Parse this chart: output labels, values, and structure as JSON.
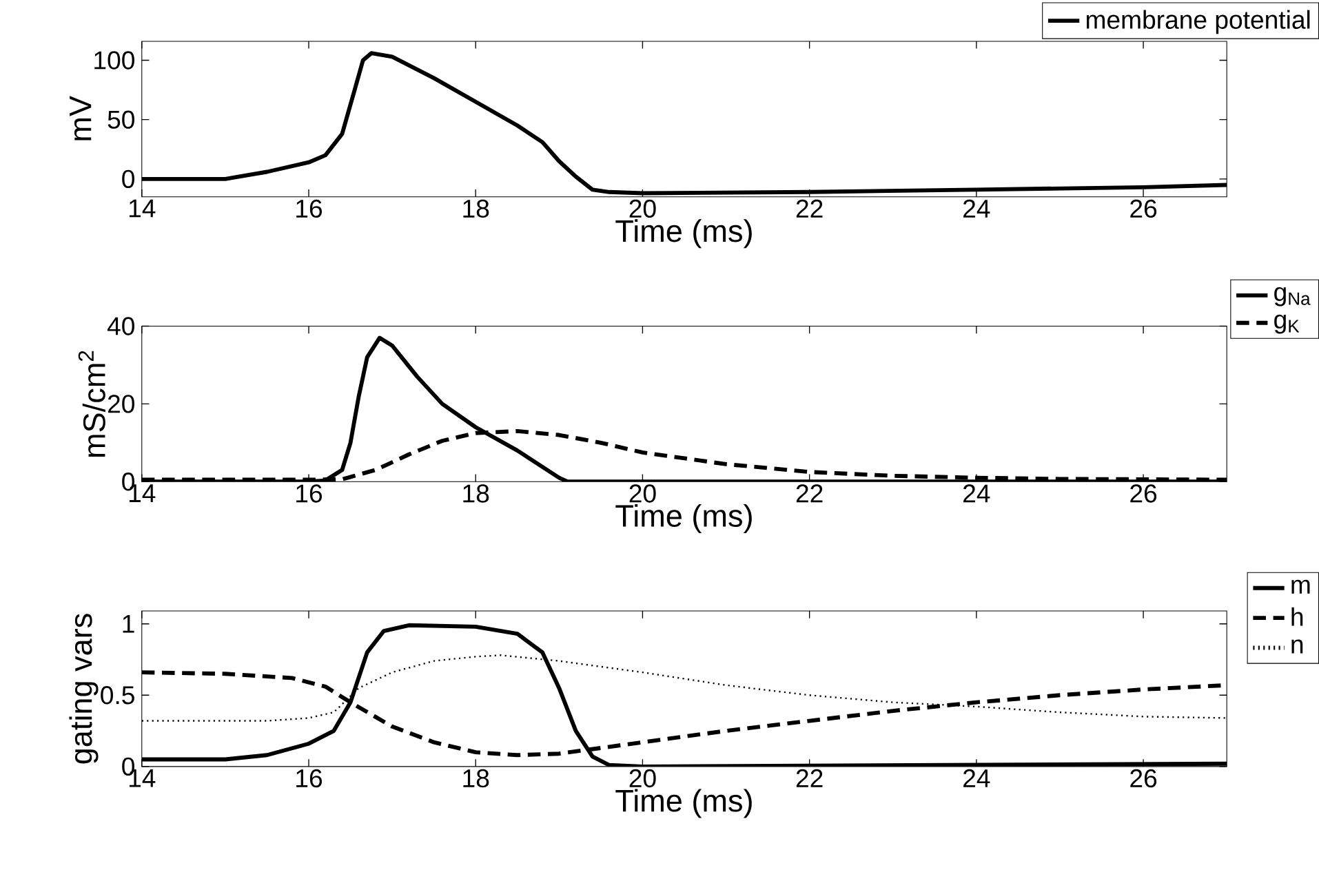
{
  "chart_data": [
    {
      "type": "line",
      "xlabel": "Time (ms)",
      "ylabel": "mV",
      "xlim": [
        14,
        27
      ],
      "ylim": [
        -15,
        116
      ],
      "xticks": [
        14,
        16,
        18,
        20,
        22,
        24,
        26
      ],
      "yticks": [
        0,
        50,
        100
      ],
      "legend": "top right",
      "grid": false,
      "series": [
        {
          "name": "membrane potential",
          "color": "#000000",
          "line_style": "solid",
          "x": [
            14,
            15,
            15.5,
            16,
            16.2,
            16.4,
            16.55,
            16.65,
            16.75,
            17,
            17.5,
            18,
            18.5,
            18.8,
            19,
            19.2,
            19.4,
            19.6,
            20,
            22,
            24,
            26,
            27
          ],
          "values": [
            0,
            0,
            6,
            14,
            20,
            38,
            75,
            100,
            106,
            103,
            85,
            65,
            45,
            31,
            15,
            2,
            -9,
            -11,
            -12,
            -11,
            -9,
            -7,
            -5
          ]
        }
      ]
    },
    {
      "type": "line",
      "xlabel": "Time (ms)",
      "ylabel": "mS/cm$^{2}$",
      "xlim": [
        14,
        27
      ],
      "ylim": [
        0,
        40
      ],
      "xticks": [
        14,
        16,
        18,
        20,
        22,
        24,
        26
      ],
      "yticks": [
        0,
        20,
        40
      ],
      "legend": "right",
      "grid": false,
      "series": [
        {
          "name": "g$_{Na}$",
          "color": "#000000",
          "line_style": "solid",
          "x": [
            14,
            16,
            16.2,
            16.4,
            16.5,
            16.6,
            16.7,
            16.85,
            17,
            17.3,
            17.6,
            18,
            18.5,
            19,
            19.1,
            27
          ],
          "values": [
            0,
            0,
            0.3,
            3,
            10,
            22,
            32,
            37,
            35,
            27,
            20,
            14,
            8,
            1,
            0,
            0
          ]
        },
        {
          "name": "g$_{K}$",
          "color": "#000000",
          "line_style": "dashed",
          "x": [
            14,
            16,
            16.4,
            16.8,
            17.2,
            17.6,
            18,
            18.5,
            19,
            19.5,
            20,
            21,
            22,
            23,
            24,
            25,
            27
          ],
          "values": [
            0.5,
            0.5,
            0.6,
            3,
            7,
            10.5,
            12.5,
            13,
            12,
            10,
            7.5,
            4.5,
            2.5,
            1.5,
            1,
            0.7,
            0.5
          ]
        }
      ]
    },
    {
      "type": "line",
      "xlabel": "Time (ms)",
      "ylabel": "gating vars",
      "xlim": [
        14,
        27
      ],
      "ylim": [
        0,
        1.09
      ],
      "xticks": [
        14,
        16,
        18,
        20,
        22,
        24,
        26
      ],
      "yticks": [
        0,
        0.5,
        1
      ],
      "legend": "top right",
      "grid": false,
      "series": [
        {
          "name": "m",
          "color": "#000000",
          "line_style": "solid",
          "x": [
            14,
            15,
            15.5,
            16,
            16.3,
            16.5,
            16.7,
            16.9,
            17.2,
            18,
            18.5,
            18.8,
            19,
            19.2,
            19.4,
            19.6,
            20,
            27
          ],
          "values": [
            0.05,
            0.05,
            0.08,
            0.16,
            0.25,
            0.45,
            0.8,
            0.95,
            0.99,
            0.98,
            0.93,
            0.8,
            0.55,
            0.25,
            0.07,
            0.01,
            0,
            0.02
          ]
        },
        {
          "name": "h",
          "color": "#000000",
          "line_style": "dashed",
          "x": [
            14,
            15,
            15.8,
            16.2,
            16.5,
            17,
            17.5,
            18,
            18.5,
            19,
            19.5,
            20,
            21,
            22,
            23,
            24,
            25,
            26,
            27
          ],
          "values": [
            0.66,
            0.65,
            0.62,
            0.56,
            0.45,
            0.28,
            0.17,
            0.1,
            0.08,
            0.09,
            0.13,
            0.17,
            0.25,
            0.32,
            0.39,
            0.45,
            0.5,
            0.54,
            0.57
          ]
        },
        {
          "name": "n",
          "color": "#000000",
          "line_style": "dotted",
          "x": [
            14,
            15.5,
            16,
            16.3,
            16.6,
            17,
            17.5,
            18,
            18.3,
            19,
            20,
            21,
            22,
            23,
            24,
            25,
            26,
            27
          ],
          "values": [
            0.32,
            0.32,
            0.34,
            0.38,
            0.55,
            0.66,
            0.74,
            0.77,
            0.78,
            0.74,
            0.66,
            0.57,
            0.5,
            0.45,
            0.42,
            0.38,
            0.35,
            0.34
          ]
        }
      ]
    }
  ]
}
